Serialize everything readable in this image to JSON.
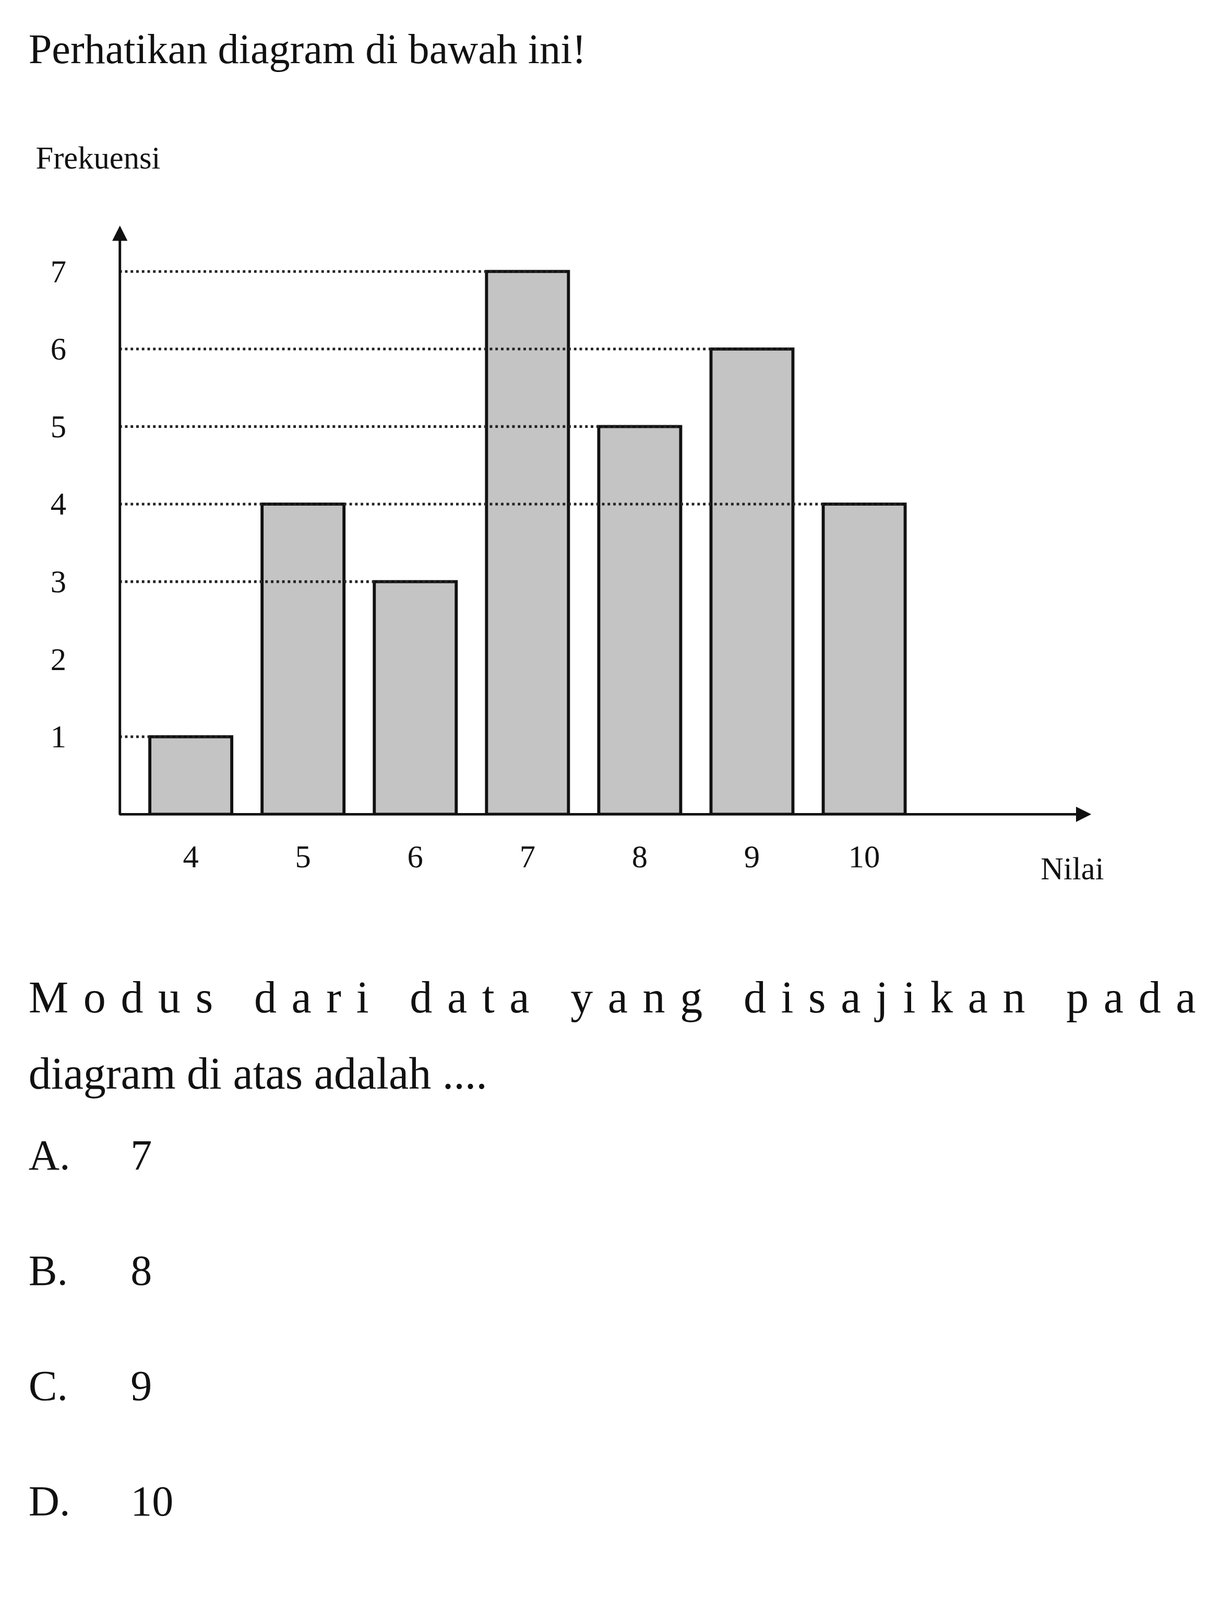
{
  "instruction": "Perhatikan diagram di bawah ini!",
  "chart_data": {
    "type": "bar",
    "x_label": "Nilai",
    "y_label": "Frekuensi",
    "categories": [
      4,
      5,
      6,
      7,
      8,
      9,
      10
    ],
    "values": [
      1,
      4,
      3,
      7,
      5,
      6,
      4
    ],
    "color": "#c4c4c4",
    "ylim": [
      0,
      7.5
    ],
    "yticks": [
      1,
      2,
      3,
      4,
      5,
      6,
      7
    ],
    "grid": true
  },
  "question": [
    "Modus dari data yang disajikan pada",
    "diagram di atas adalah ...."
  ],
  "options": [
    {
      "letter": "A.",
      "text": "7"
    },
    {
      "letter": "B.",
      "text": "8"
    },
    {
      "letter": "C.",
      "text": "9"
    },
    {
      "letter": "D.",
      "text": "10"
    }
  ]
}
